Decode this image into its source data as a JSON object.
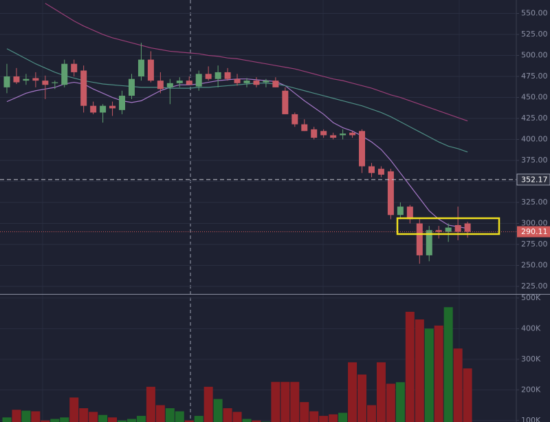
{
  "chart_data": [
    {
      "type": "candlestick",
      "up_color": "#5fa070",
      "down_color": "#c75a64",
      "open": [
        462,
        475,
        470,
        473,
        470,
        467,
        465,
        490,
        482,
        440,
        432,
        440,
        435,
        452,
        475,
        495,
        470,
        462,
        467,
        470,
        463,
        478,
        472,
        480,
        472,
        467,
        470,
        468,
        470,
        458,
        430,
        418,
        412,
        410,
        405,
        405,
        408,
        410,
        368,
        365,
        362,
        310,
        320,
        300,
        262,
        292,
        290,
        298,
        300
      ],
      "high": [
        490,
        485,
        478,
        480,
        476,
        470,
        495,
        495,
        488,
        445,
        442,
        445,
        458,
        478,
        515,
        505,
        480,
        472,
        474,
        475,
        482,
        487,
        488,
        485,
        478,
        473,
        474,
        472,
        474,
        462,
        432,
        424,
        415,
        412,
        408,
        412,
        410,
        412,
        372,
        368,
        365,
        325,
        322,
        305,
        297,
        297,
        300,
        320,
        302
      ],
      "low": [
        455,
        466,
        465,
        462,
        448,
        460,
        462,
        475,
        432,
        430,
        420,
        428,
        430,
        448,
        470,
        468,
        455,
        442,
        462,
        465,
        458,
        470,
        462,
        470,
        464,
        462,
        462,
        462,
        462,
        430,
        415,
        410,
        400,
        402,
        400,
        400,
        402,
        360,
        355,
        355,
        305,
        305,
        300,
        252,
        255,
        282,
        278,
        280,
        283
      ],
      "close": [
        475,
        468,
        472,
        470,
        465,
        468,
        490,
        480,
        440,
        432,
        440,
        437,
        452,
        472,
        495,
        470,
        460,
        467,
        470,
        465,
        478,
        472,
        480,
        472,
        467,
        470,
        465,
        470,
        462,
        430,
        418,
        410,
        402,
        405,
        402,
        407,
        405,
        368,
        360,
        358,
        310,
        320,
        305,
        262,
        292,
        290,
        295,
        290,
        290
      ],
      "lines": [
        {
          "color": "#a678c8",
          "values": [
            445,
            450,
            455,
            458,
            460,
            462,
            466,
            468,
            466,
            460,
            455,
            450,
            446,
            444,
            446,
            452,
            458,
            462,
            465,
            465,
            466,
            468,
            470,
            471,
            472,
            472,
            471,
            470,
            469,
            464,
            455,
            446,
            438,
            430,
            420,
            414,
            410,
            404,
            397,
            388,
            375,
            360,
            345,
            330,
            315,
            305,
            298,
            296,
            294
          ]
        },
        {
          "color": "#4f8f86",
          "values": [
            508,
            502,
            496,
            490,
            485,
            480,
            476,
            473,
            470,
            468,
            466,
            465,
            464,
            463,
            462,
            462,
            462,
            461,
            461,
            461,
            462,
            462,
            463,
            464,
            465,
            466,
            467,
            467,
            466,
            464,
            461,
            458,
            455,
            452,
            449,
            446,
            443,
            440,
            436,
            432,
            427,
            421,
            415,
            409,
            403,
            397,
            392,
            389,
            385
          ]
        },
        {
          "color": "#9a3f78",
          "values": [
            null,
            null,
            null,
            null,
            562,
            555,
            548,
            541,
            535,
            530,
            525,
            521,
            518,
            515,
            512,
            509,
            507,
            505,
            504,
            503,
            502,
            500,
            499,
            497,
            496,
            494,
            492,
            490,
            488,
            486,
            484,
            481,
            478,
            475,
            472,
            470,
            467,
            464,
            461,
            457,
            453,
            450,
            446,
            442,
            438,
            434,
            430,
            426,
            422
          ]
        }
      ],
      "ylim": [
        216,
        566
      ],
      "yticks": [
        {
          "value": 225,
          "label": "225.00"
        },
        {
          "value": 250,
          "label": "250.00"
        },
        {
          "value": 275,
          "label": "275.00"
        },
        {
          "value": 300,
          "label": "300.00"
        },
        {
          "value": 325,
          "label": "325.00"
        },
        {
          "value": 350,
          "label": "350.00"
        },
        {
          "value": 375,
          "label": "375.00"
        },
        {
          "value": 400,
          "label": "400.00"
        },
        {
          "value": 425,
          "label": "425.00"
        },
        {
          "value": 450,
          "label": "450.00"
        },
        {
          "value": 475,
          "label": "475.00"
        },
        {
          "value": 500,
          "label": "500.00"
        },
        {
          "value": 525,
          "label": "525.00"
        },
        {
          "value": 550,
          "label": "550.00"
        }
      ],
      "grid": true,
      "price_lines": [
        {
          "value": 352.17,
          "color": "#c8cad4",
          "style": "dashed"
        },
        {
          "value": 290.11,
          "color": "#d05a5a",
          "style": "dotted"
        }
      ]
    },
    {
      "type": "bar",
      "up_color": "#1f6b2c",
      "down_color": "#8c1d22",
      "values": [
        110000,
        135000,
        132000,
        130000,
        100000,
        105000,
        110000,
        175000,
        140000,
        128000,
        118000,
        110000,
        100000,
        105000,
        115000,
        210000,
        150000,
        140000,
        130000,
        100000,
        115000,
        210000,
        170000,
        140000,
        128000,
        105000,
        100000,
        96000,
        226000,
        226000,
        226000,
        160000,
        130000,
        115000,
        120000,
        125000,
        290000,
        250000,
        150000,
        290000,
        220000,
        225000,
        455000,
        430000,
        400000,
        410000,
        470000,
        335000,
        270000
      ],
      "ylim": [
        95000,
        511000
      ],
      "yticks": [
        {
          "value": 100000,
          "label": "100K"
        },
        {
          "value": 200000,
          "label": "200K"
        },
        {
          "value": 300000,
          "label": "300K"
        },
        {
          "value": 400000,
          "label": "400K"
        },
        {
          "value": 500000,
          "label": "500K"
        }
      ],
      "grid": true
    }
  ]
}
